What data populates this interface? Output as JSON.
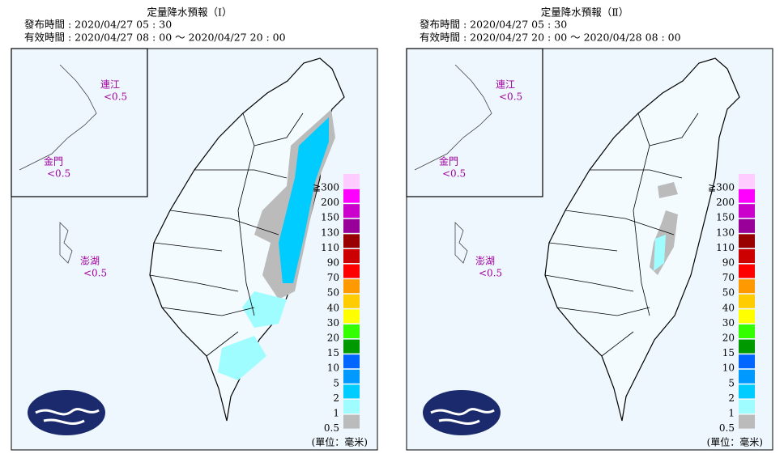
{
  "panels": [
    {
      "title": "定量降水預報（Ⅰ）",
      "issued": "發布時間 : 2020/04/27 05 : 30",
      "valid": "有效時間 : 2020/04/27 08 : 00 ～ 2020/04/27 20 : 00",
      "islands": [
        {
          "name": "連江",
          "value": "<0.5"
        },
        {
          "name": "金門",
          "value": "<0.5"
        },
        {
          "name": "澎湖",
          "value": "<0.5"
        }
      ]
    },
    {
      "title": "定量降水預報（Ⅱ）",
      "issued": "發布時間 : 2020/04/27 05 : 30",
      "valid": "有效時間 : 2020/04/27 20 : 00 ～ 2020/04/28 08 : 00",
      "islands": [
        {
          "name": "連江",
          "value": "<0.5"
        },
        {
          "name": "金門",
          "value": "<0.5"
        },
        {
          "name": "澎湖",
          "value": "<0.5"
        }
      ]
    }
  ],
  "legend": [
    {
      "label": "≧300",
      "color": "#ffccff"
    },
    {
      "label": "200",
      "color": "#ff00ff"
    },
    {
      "label": "150",
      "color": "#cc00cc"
    },
    {
      "label": "130",
      "color": "#990099"
    },
    {
      "label": "110",
      "color": "#990000"
    },
    {
      "label": "90",
      "color": "#cc0000"
    },
    {
      "label": "70",
      "color": "#ff0000"
    },
    {
      "label": "50",
      "color": "#ff9900"
    },
    {
      "label": "40",
      "color": "#ffcc00"
    },
    {
      "label": "30",
      "color": "#ffff00"
    },
    {
      "label": "20",
      "color": "#33ff00"
    },
    {
      "label": "15",
      "color": "#009900"
    },
    {
      "label": "10",
      "color": "#0066ff"
    },
    {
      "label": "5",
      "color": "#0099ff"
    },
    {
      "label": "2",
      "color": "#00ccff"
    },
    {
      "label": "1",
      "color": "#9ffcff"
    },
    {
      "label": "0.5",
      "color": "#bbbbbb"
    }
  ],
  "unit": "(單位：毫米)"
}
